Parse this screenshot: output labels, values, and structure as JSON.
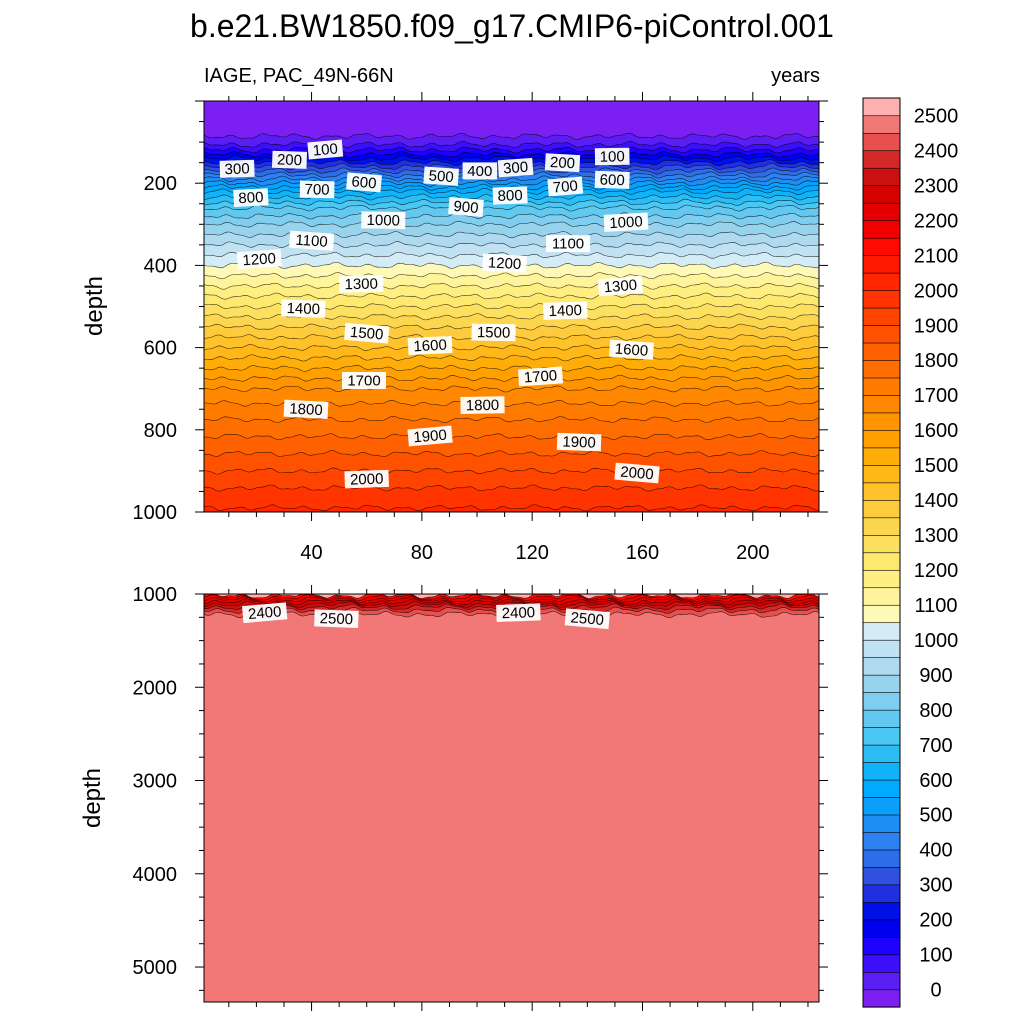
{
  "title": "b.e21.BW1850.f09_g17.CMIP6-piControl.001",
  "chart_data": [
    {
      "type": "contour",
      "panel": "upper",
      "left_label": "IAGE, PAC_49N-66N",
      "right_label": "years",
      "xlabel": "",
      "ylabel": "depth",
      "xlim": [
        1,
        224
      ],
      "ylim": [
        0,
        1000
      ],
      "y_reversed": true,
      "xticks": [
        40,
        80,
        120,
        160,
        200
      ],
      "yticks": [
        200,
        400,
        600,
        800,
        1000
      ],
      "profile": {
        "depth": [
          0,
          65,
          90,
          110,
          130,
          150,
          170,
          190,
          220,
          260,
          300,
          350,
          400,
          450,
          500,
          550,
          600,
          650,
          700,
          750,
          800,
          850,
          900,
          950,
          1000
        ],
        "age": [
          0,
          0,
          60,
          110,
          200,
          300,
          400,
          500,
          650,
          800,
          900,
          1000,
          1100,
          1200,
          1300,
          1400,
          1500,
          1600,
          1700,
          1770,
          1830,
          1890,
          1950,
          2010,
          2060
        ]
      },
      "contour_labels": [
        {
          "level": 100,
          "x": 45,
          "depth": 118
        },
        {
          "level": 200,
          "x": 32,
          "depth": 143
        },
        {
          "level": 300,
          "x": 13,
          "depth": 165
        },
        {
          "level": 600,
          "x": 59,
          "depth": 198
        },
        {
          "level": 700,
          "x": 42,
          "depth": 215
        },
        {
          "level": 800,
          "x": 18,
          "depth": 235
        },
        {
          "level": 500,
          "x": 87,
          "depth": 183
        },
        {
          "level": 400,
          "x": 101,
          "depth": 170
        },
        {
          "level": 300,
          "x": 114,
          "depth": 162
        },
        {
          "level": 200,
          "x": 131,
          "depth": 150
        },
        {
          "level": 100,
          "x": 149,
          "depth": 135
        },
        {
          "level": 700,
          "x": 132,
          "depth": 208
        },
        {
          "level": 600,
          "x": 149,
          "depth": 192
        },
        {
          "level": 800,
          "x": 112,
          "depth": 230
        },
        {
          "level": 900,
          "x": 96,
          "depth": 258
        },
        {
          "level": 1000,
          "x": 66,
          "depth": 290
        },
        {
          "level": 1000,
          "x": 154,
          "depth": 295
        },
        {
          "level": 1100,
          "x": 40,
          "depth": 340
        },
        {
          "level": 1100,
          "x": 133,
          "depth": 347
        },
        {
          "level": 1200,
          "x": 21,
          "depth": 385
        },
        {
          "level": 1200,
          "x": 110,
          "depth": 395
        },
        {
          "level": 1300,
          "x": 58,
          "depth": 445
        },
        {
          "level": 1300,
          "x": 152,
          "depth": 450
        },
        {
          "level": 1400,
          "x": 37,
          "depth": 505
        },
        {
          "level": 1400,
          "x": 132,
          "depth": 510
        },
        {
          "level": 1500,
          "x": 60,
          "depth": 565
        },
        {
          "level": 1500,
          "x": 106,
          "depth": 563
        },
        {
          "level": 1600,
          "x": 83,
          "depth": 595
        },
        {
          "level": 1600,
          "x": 156,
          "depth": 605
        },
        {
          "level": 1700,
          "x": 59,
          "depth": 680
        },
        {
          "level": 1700,
          "x": 123,
          "depth": 670
        },
        {
          "level": 1800,
          "x": 38,
          "depth": 750
        },
        {
          "level": 1800,
          "x": 102,
          "depth": 740
        },
        {
          "level": 1900,
          "x": 83,
          "depth": 815
        },
        {
          "level": 1900,
          "x": 137,
          "depth": 830
        },
        {
          "level": 2000,
          "x": 60,
          "depth": 920
        },
        {
          "level": 2000,
          "x": 158,
          "depth": 905
        }
      ]
    },
    {
      "type": "contour",
      "panel": "lower",
      "xlabel": "",
      "ylabel": "depth",
      "xlim": [
        1,
        224
      ],
      "ylim": [
        1000,
        5375
      ],
      "y_reversed": true,
      "yticks": [
        1000,
        2000,
        3000,
        4000,
        5000
      ],
      "profile": {
        "depth": [
          1000,
          1050,
          1100,
          1150,
          1200,
          1250,
          1300,
          5375
        ],
        "age": [
          2110,
          2230,
          2330,
          2420,
          2480,
          2530,
          2560,
          2560
        ]
      },
      "contour_labels": [
        {
          "level": 2400,
          "x": 23,
          "depth": 1200
        },
        {
          "level": 2500,
          "x": 49,
          "depth": 1265
        },
        {
          "level": 2400,
          "x": 115,
          "depth": 1200
        },
        {
          "level": 2500,
          "x": 140,
          "depth": 1265
        }
      ]
    }
  ],
  "colorbar": {
    "min": 0,
    "max": 2550,
    "step": 50,
    "labels": [
      "2500",
      "2400",
      "2300",
      "2200",
      "2100",
      "2000",
      "1900",
      "1800",
      "1700",
      "1600",
      "1500",
      "1400",
      "1300",
      "1200",
      "1100",
      "1000",
      "900",
      "800",
      "700",
      "600",
      "500",
      "400",
      "300",
      "200",
      "100",
      "0"
    ],
    "colors": [
      "#7b1ff2",
      "#5a1ef5",
      "#3b10f8",
      "#1f00ff",
      "#0000ee",
      "#0010e8",
      "#2030e0",
      "#3050e0",
      "#2d6ee8",
      "#2f80f0",
      "#1e8ef5",
      "#0aa0fa",
      "#00aaff",
      "#10b3f8",
      "#2dbdf5",
      "#4ac8f3",
      "#62c8f0",
      "#7fcdef",
      "#98d3ee",
      "#aed9ef",
      "#c0e2f2",
      "#d4ecf6",
      "#fff9b8",
      "#fff49b",
      "#ffee82",
      "#fde870",
      "#fde060",
      "#fdd650",
      "#fdcb3c",
      "#ffc22a",
      "#ffb818",
      "#ffad08",
      "#ffa000",
      "#ff9400",
      "#ff8800",
      "#ff7b00",
      "#ff6e00",
      "#ff6000",
      "#ff5200",
      "#ff4300",
      "#ff3400",
      "#ff2600",
      "#ff1800",
      "#ff0a00",
      "#f20000",
      "#e40000",
      "#d50000",
      "#cc1010",
      "#d52828",
      "#e85050",
      "#f27878",
      "#fdb0b0"
    ]
  }
}
